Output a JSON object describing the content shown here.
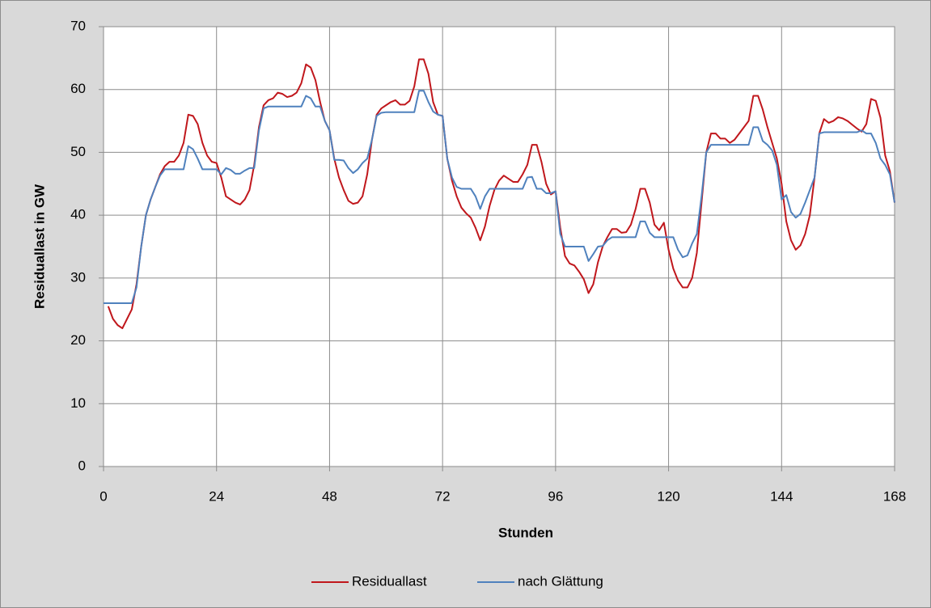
{
  "chart_data": {
    "type": "line",
    "x_label": "Stunden",
    "y_label": "Residuallast in GW",
    "x": [
      0,
      1,
      2,
      3,
      4,
      5,
      6,
      7,
      8,
      9,
      10,
      11,
      12,
      13,
      14,
      15,
      16,
      17,
      18,
      19,
      20,
      21,
      22,
      23,
      24,
      25,
      26,
      27,
      28,
      29,
      30,
      31,
      32,
      33,
      34,
      35,
      36,
      37,
      38,
      39,
      40,
      41,
      42,
      43,
      44,
      45,
      46,
      47,
      48,
      49,
      50,
      51,
      52,
      53,
      54,
      55,
      56,
      57,
      58,
      59,
      60,
      61,
      62,
      63,
      64,
      65,
      66,
      67,
      68,
      69,
      70,
      71,
      72,
      73,
      74,
      75,
      76,
      77,
      78,
      79,
      80,
      81,
      82,
      83,
      84,
      85,
      86,
      87,
      88,
      89,
      90,
      91,
      92,
      93,
      94,
      95,
      96,
      97,
      98,
      99,
      100,
      101,
      102,
      103,
      104,
      105,
      106,
      107,
      108,
      109,
      110,
      111,
      112,
      113,
      114,
      115,
      116,
      117,
      118,
      119,
      120,
      121,
      122,
      123,
      124,
      125,
      126,
      127,
      128,
      129,
      130,
      131,
      132,
      133,
      134,
      135,
      136,
      137,
      138,
      139,
      140,
      141,
      142,
      143,
      144,
      145,
      146,
      147,
      148,
      149,
      150,
      151,
      152,
      153,
      154,
      155,
      156,
      157,
      158,
      159,
      160,
      161,
      162,
      163,
      164,
      165,
      166,
      167,
      168
    ],
    "series": [
      {
        "name": "Residuallast",
        "color": "#c0171c",
        "values": [
          null,
          25.5,
          23.5,
          22.5,
          22,
          23.5,
          25,
          29,
          35,
          40,
          42.5,
          44.5,
          46.5,
          47.8,
          48.5,
          48.5,
          49.5,
          51.5,
          56,
          55.8,
          54.5,
          51.5,
          49.5,
          48.5,
          48.3,
          46,
          43,
          42.5,
          42,
          41.7,
          42.5,
          44,
          48,
          54,
          57.5,
          58.3,
          58.6,
          59.5,
          59.3,
          58.8,
          59,
          59.5,
          61,
          64,
          63.5,
          61.5,
          58,
          55,
          53.5,
          49,
          46,
          44,
          42.3,
          41.8,
          42,
          43,
          46.5,
          52,
          56,
          57,
          57.5,
          58,
          58.3,
          57.6,
          57.6,
          58.2,
          60.5,
          64.8,
          64.8,
          62.5,
          58,
          56,
          55.8,
          49,
          45.5,
          43,
          41.2,
          40.3,
          39.6,
          38,
          36,
          38.2,
          41.5,
          44,
          45.5,
          46.3,
          45.8,
          45.3,
          45.3,
          46.5,
          48,
          51.2,
          51.2,
          48.5,
          45,
          43.3,
          43.8,
          38,
          33.5,
          32.3,
          32,
          31,
          29.8,
          27.6,
          29,
          32.5,
          35,
          36.5,
          37.8,
          37.8,
          37.2,
          37.3,
          38.5,
          41,
          44.2,
          44.2,
          42,
          38.5,
          37.6,
          38.8,
          34.5,
          31.5,
          29.6,
          28.5,
          28.5,
          30,
          34,
          42,
          50,
          53,
          53,
          52.2,
          52.2,
          51.5,
          52,
          53,
          54,
          55,
          59,
          59,
          56.8,
          54,
          51.5,
          49,
          45,
          39,
          36,
          34.5,
          35.2,
          37,
          40,
          46,
          53,
          55.3,
          54.7,
          55,
          55.6,
          55.4,
          55,
          54.4,
          53.8,
          53.3,
          54.5,
          58.5,
          58.2,
          55.5,
          49.5,
          47,
          42
        ]
      },
      {
        "name": "nach Glättung",
        "color": "#4f81bd",
        "values": [
          26,
          26,
          26,
          26,
          26,
          26,
          26,
          28.5,
          35,
          40,
          42.5,
          44.5,
          46.3,
          47.3,
          47.3,
          47.3,
          47.3,
          47.3,
          51,
          50.5,
          49,
          47.3,
          47.3,
          47.3,
          47.3,
          46.5,
          47.5,
          47.2,
          46.6,
          46.6,
          47.1,
          47.5,
          47.5,
          53.5,
          57,
          57.3,
          57.3,
          57.3,
          57.3,
          57.3,
          57.3,
          57.3,
          57.3,
          59,
          58.6,
          57.3,
          57.3,
          55,
          53.5,
          48.8,
          48.8,
          48.7,
          47.5,
          46.7,
          47.3,
          48.3,
          49,
          52,
          55.8,
          56.3,
          56.4,
          56.4,
          56.4,
          56.4,
          56.4,
          56.4,
          56.4,
          59.8,
          59.8,
          58,
          56.5,
          56,
          55.8,
          49,
          46,
          44.5,
          44.2,
          44.2,
          44.2,
          43,
          41,
          43,
          44.2,
          44.2,
          44.2,
          44.2,
          44.2,
          44.2,
          44.2,
          44.2,
          46,
          46.1,
          44.2,
          44.2,
          43.5,
          43.5,
          43.8,
          37,
          35,
          35,
          35,
          35,
          35,
          32.7,
          33.8,
          35,
          35.1,
          36,
          36.5,
          36.5,
          36.5,
          36.5,
          36.5,
          36.5,
          39,
          39,
          37.2,
          36.5,
          36.5,
          36.5,
          36.5,
          36.5,
          34.5,
          33.3,
          33.6,
          35.5,
          37,
          43,
          50,
          51.2,
          51.2,
          51.2,
          51.2,
          51.2,
          51.2,
          51.2,
          51.2,
          51.2,
          54,
          54,
          51.8,
          51.2,
          50.3,
          48,
          42.5,
          43.2,
          40.5,
          39.6,
          40.2,
          42,
          44,
          46,
          53,
          53.2,
          53.2,
          53.2,
          53.2,
          53.2,
          53.2,
          53.2,
          53.2,
          53.5,
          53,
          53,
          51.5,
          49,
          48,
          46.5,
          42
        ]
      }
    ],
    "xlim": [
      0,
      168
    ],
    "xticks": [
      0,
      24,
      48,
      72,
      96,
      120,
      144,
      168
    ],
    "ylim": [
      0,
      70
    ],
    "yticks": [
      0,
      10,
      20,
      30,
      40,
      50,
      60,
      70
    ],
    "grid": true,
    "legend": "bottom"
  }
}
